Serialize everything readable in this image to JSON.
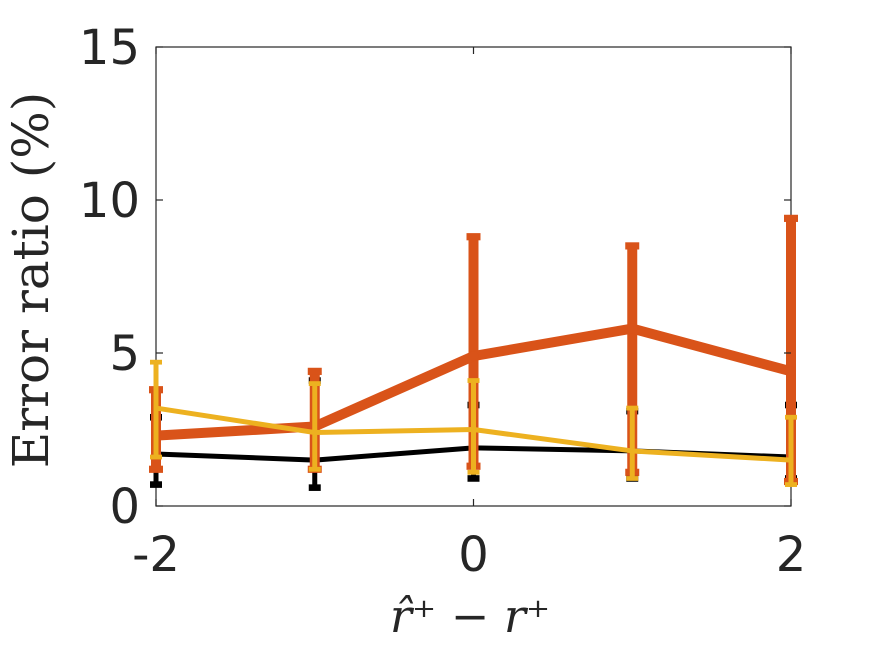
{
  "chart_data": {
    "type": "line",
    "title": "",
    "xlabel": "r̂⁺ − r⁺",
    "ylabel": "Error ratio (%)",
    "xlim": [
      -2,
      2
    ],
    "ylim": [
      0,
      15
    ],
    "xticks": [
      "-2",
      "0",
      "2"
    ],
    "xtick_values": [
      -2,
      0,
      2
    ],
    "yticks": [
      "0",
      "5",
      "10",
      "15"
    ],
    "ytick_values": [
      0,
      5,
      10,
      15
    ],
    "grid": false,
    "x": [
      -2,
      -1,
      0,
      1,
      2
    ],
    "series": [
      {
        "color": "#000000",
        "values": [
          1.7,
          1.5,
          1.9,
          1.8,
          1.6
        ],
        "err_low": [
          0.7,
          0.6,
          0.9,
          0.9,
          0.9
        ],
        "err_high": [
          2.9,
          4.1,
          3.3,
          3.1,
          3.3
        ]
      },
      {
        "color": "#D95319",
        "values": [
          2.3,
          2.6,
          4.9,
          5.8,
          4.4
        ],
        "err_low": [
          1.2,
          1.2,
          1.3,
          1.1,
          0.8
        ],
        "err_high": [
          3.8,
          4.4,
          8.8,
          8.5,
          9.4
        ]
      },
      {
        "color": "#EDB120",
        "values": [
          3.2,
          2.4,
          2.5,
          1.8,
          1.5
        ],
        "err_low": [
          1.6,
          1.2,
          1.1,
          0.9,
          0.7
        ],
        "err_high": [
          4.7,
          4.0,
          4.1,
          3.2,
          2.9
        ]
      }
    ]
  }
}
